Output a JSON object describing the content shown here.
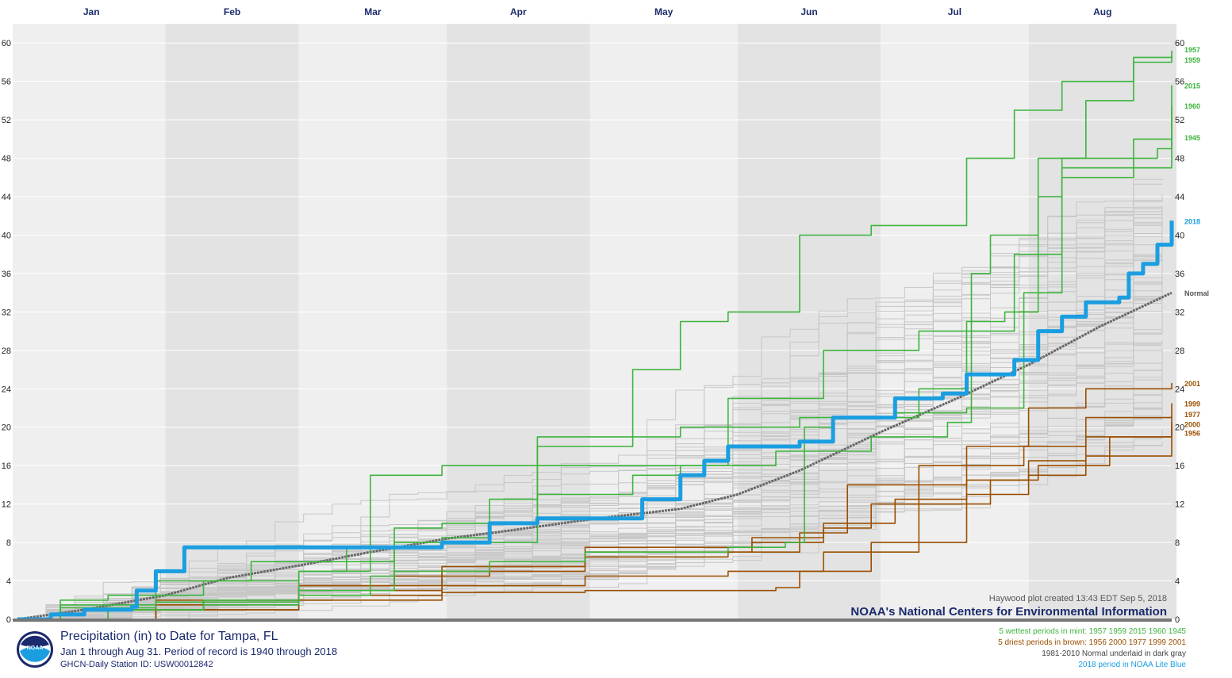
{
  "months": [
    "Jan",
    "Feb",
    "Mar",
    "Apr",
    "May",
    "Jun",
    "Jul",
    "Aug"
  ],
  "credits": {
    "created": "Haywood plot created 13:43 EDT Sep 5, 2018",
    "org": "NOAA's National Centers for Environmental Information"
  },
  "footer": {
    "title": "Precipitation (in) to Date for Tampa, FL",
    "subtitle": "Jan 1 through Aug 31. Period of record is 1940 through 2018",
    "station": "GHCN-Daily Station ID: USW00012842",
    "legend_wettest": "5 wettest periods in mint: 1957 1959 2015 1960 1945",
    "legend_driest": "5 driest periods in brown: 1956 2000 1977 1999 2001",
    "legend_normal": "1981-2010 Normal underlaid in dark gray",
    "legend_current": "2018 period in NOAA Lite Blue"
  },
  "logo_text": "NOAA",
  "chart_data": {
    "type": "line",
    "x_unit": "day of year (Jan 1 = 1)",
    "xlim": [
      1,
      243
    ],
    "ylim": [
      0,
      62
    ],
    "yticks": [
      0,
      4,
      8,
      12,
      16,
      20,
      24,
      28,
      32,
      36,
      40,
      44,
      48,
      52,
      56,
      60
    ],
    "month_starts": [
      1,
      32,
      60,
      91,
      121,
      152,
      182,
      213
    ],
    "colors": {
      "wet": "#3db43d",
      "dry": "#9a4f00",
      "normal": "#666666",
      "current": "#1b9ee0",
      "other": "#c6c6c6"
    },
    "series": [
      {
        "name": "1957",
        "group": "wet",
        "points": [
          [
            1,
            0
          ],
          [
            10,
            1.2
          ],
          [
            30,
            1.8
          ],
          [
            60,
            2.5
          ],
          [
            75,
            4.5
          ],
          [
            80,
            9.5
          ],
          [
            90,
            10
          ],
          [
            110,
            13
          ],
          [
            130,
            15
          ],
          [
            140,
            16
          ],
          [
            160,
            17.5
          ],
          [
            180,
            19
          ],
          [
            196,
            20.5
          ],
          [
            201,
            36
          ],
          [
            205,
            40
          ],
          [
            215,
            48
          ],
          [
            225,
            54
          ],
          [
            235,
            58
          ],
          [
            243,
            59.2
          ]
        ]
      },
      {
        "name": "1959",
        "group": "wet",
        "points": [
          [
            1,
            0
          ],
          [
            10,
            2
          ],
          [
            20,
            2.5
          ],
          [
            40,
            4
          ],
          [
            60,
            5
          ],
          [
            70,
            7.5
          ],
          [
            90,
            8.5
          ],
          [
            100,
            12.5
          ],
          [
            110,
            18
          ],
          [
            130,
            26
          ],
          [
            140,
            31
          ],
          [
            150,
            32
          ],
          [
            165,
            40
          ],
          [
            180,
            41
          ],
          [
            200,
            48
          ],
          [
            210,
            53
          ],
          [
            220,
            56
          ],
          [
            235,
            58.5
          ],
          [
            243,
            58.7
          ]
        ]
      },
      {
        "name": "2015",
        "group": "wet",
        "points": [
          [
            1,
            0
          ],
          [
            10,
            1.5
          ],
          [
            30,
            4
          ],
          [
            50,
            6
          ],
          [
            80,
            8
          ],
          [
            110,
            16
          ],
          [
            150,
            23
          ],
          [
            170,
            28
          ],
          [
            190,
            30
          ],
          [
            200,
            31
          ],
          [
            208,
            32
          ],
          [
            215,
            44
          ],
          [
            220,
            48
          ],
          [
            235,
            50
          ],
          [
            243,
            55.6
          ]
        ]
      },
      {
        "name": "1960",
        "group": "wet",
        "points": [
          [
            1,
            0
          ],
          [
            20,
            1
          ],
          [
            40,
            2
          ],
          [
            60,
            5
          ],
          [
            75,
            15
          ],
          [
            90,
            16
          ],
          [
            110,
            19
          ],
          [
            140,
            20
          ],
          [
            165,
            21
          ],
          [
            185,
            21.5
          ],
          [
            200,
            22
          ],
          [
            212,
            34
          ],
          [
            220,
            46
          ],
          [
            235,
            48
          ],
          [
            240,
            49
          ],
          [
            243,
            53.5
          ]
        ]
      },
      {
        "name": "1945",
        "group": "wet",
        "points": [
          [
            1,
            0
          ],
          [
            20,
            1
          ],
          [
            40,
            1.5
          ],
          [
            60,
            3
          ],
          [
            80,
            5
          ],
          [
            100,
            6
          ],
          [
            120,
            7
          ],
          [
            150,
            7.5
          ],
          [
            162,
            8
          ],
          [
            166,
            20
          ],
          [
            172,
            21
          ],
          [
            190,
            24
          ],
          [
            200,
            30
          ],
          [
            210,
            38
          ],
          [
            220,
            47
          ],
          [
            243,
            50.2
          ]
        ]
      },
      {
        "name": "2001",
        "group": "dry",
        "points": [
          [
            1,
            0
          ],
          [
            20,
            1
          ],
          [
            40,
            2
          ],
          [
            60,
            3.5
          ],
          [
            80,
            4.5
          ],
          [
            100,
            5.5
          ],
          [
            120,
            6.5
          ],
          [
            150,
            7
          ],
          [
            165,
            9
          ],
          [
            175,
            14
          ],
          [
            190,
            16
          ],
          [
            200,
            18
          ],
          [
            213,
            22
          ],
          [
            225,
            24
          ],
          [
            243,
            24.6
          ]
        ]
      },
      {
        "name": "1999",
        "group": "dry",
        "points": [
          [
            1,
            0
          ],
          [
            30,
            1.5
          ],
          [
            60,
            3
          ],
          [
            90,
            5
          ],
          [
            120,
            7
          ],
          [
            155,
            8
          ],
          [
            170,
            9.5
          ],
          [
            180,
            12
          ],
          [
            190,
            14
          ],
          [
            200,
            16
          ],
          [
            212,
            18
          ],
          [
            225,
            21
          ],
          [
            243,
            22.5
          ]
        ]
      },
      {
        "name": "1977",
        "group": "dry",
        "points": [
          [
            1,
            0
          ],
          [
            30,
            2
          ],
          [
            60,
            3.5
          ],
          [
            90,
            5.5
          ],
          [
            120,
            7.5
          ],
          [
            155,
            8.5
          ],
          [
            170,
            10
          ],
          [
            185,
            12.5
          ],
          [
            200,
            14.5
          ],
          [
            213,
            16.5
          ],
          [
            225,
            19
          ],
          [
            243,
            21.2
          ]
        ]
      },
      {
        "name": "2000",
        "group": "dry",
        "points": [
          [
            1,
            0
          ],
          [
            30,
            1
          ],
          [
            60,
            2.5
          ],
          [
            90,
            3.5
          ],
          [
            120,
            4.5
          ],
          [
            150,
            5
          ],
          [
            170,
            7
          ],
          [
            190,
            12
          ],
          [
            205,
            14.5
          ],
          [
            215,
            16
          ],
          [
            230,
            19
          ],
          [
            243,
            20.5
          ]
        ]
      },
      {
        "name": "1956",
        "group": "dry",
        "points": [
          [
            1,
            0
          ],
          [
            30,
            1
          ],
          [
            60,
            2
          ],
          [
            90,
            2.8
          ],
          [
            120,
            3
          ],
          [
            160,
            3.3
          ],
          [
            165,
            5
          ],
          [
            180,
            8
          ],
          [
            200,
            13
          ],
          [
            213,
            15
          ],
          [
            225,
            17
          ],
          [
            243,
            20
          ]
        ]
      },
      {
        "name": "Normal",
        "group": "normal",
        "points": [
          [
            1,
            0
          ],
          [
            15,
            1
          ],
          [
            32,
            2.5
          ],
          [
            45,
            4.3
          ],
          [
            60,
            5.6
          ],
          [
            75,
            7
          ],
          [
            91,
            8.4
          ],
          [
            105,
            9.3
          ],
          [
            121,
            10.4
          ],
          [
            140,
            11.5
          ],
          [
            152,
            13
          ],
          [
            165,
            15.5
          ],
          [
            182,
            19.5
          ],
          [
            198,
            23
          ],
          [
            213,
            26.5
          ],
          [
            228,
            30.5
          ],
          [
            243,
            34
          ]
        ]
      },
      {
        "name": "2018",
        "group": "current",
        "points": [
          [
            1,
            0
          ],
          [
            8,
            0.5
          ],
          [
            15,
            1
          ],
          [
            25,
            1.3
          ],
          [
            26,
            3
          ],
          [
            30,
            5
          ],
          [
            35,
            5
          ],
          [
            36,
            7.5
          ],
          [
            60,
            7.5
          ],
          [
            90,
            8
          ],
          [
            100,
            10
          ],
          [
            110,
            10.5
          ],
          [
            130,
            10.5
          ],
          [
            132,
            12.5
          ],
          [
            137,
            12.5
          ],
          [
            140,
            15
          ],
          [
            145,
            16.5
          ],
          [
            150,
            18
          ],
          [
            165,
            18.5
          ],
          [
            172,
            21
          ],
          [
            180,
            21
          ],
          [
            185,
            23
          ],
          [
            195,
            23.5
          ],
          [
            200,
            25.5
          ],
          [
            210,
            27
          ],
          [
            215,
            30
          ],
          [
            220,
            31.5
          ],
          [
            225,
            33
          ],
          [
            232,
            33.5
          ],
          [
            234,
            36
          ],
          [
            237,
            37
          ],
          [
            240,
            39
          ],
          [
            243,
            41.5
          ]
        ]
      }
    ]
  }
}
